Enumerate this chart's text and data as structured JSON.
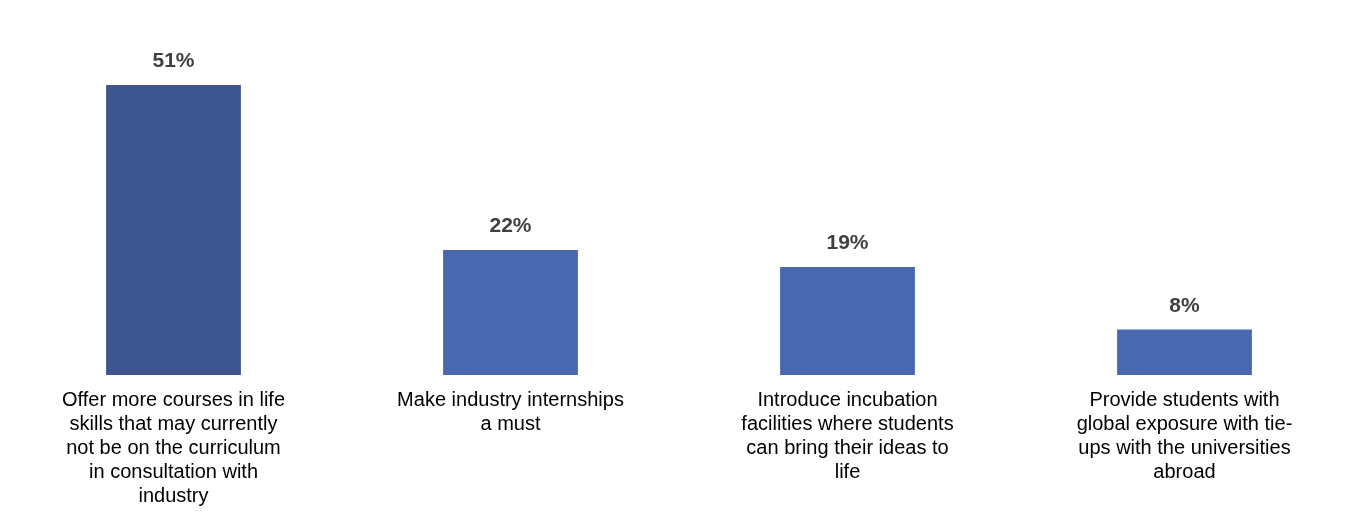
{
  "chart_data": {
    "type": "bar",
    "categories": [
      "Offer more courses in life skills that may currently not be on the curriculum in consultation with industry",
      "Make industry internships a must",
      "Introduce incubation facilities where students can bring their ideas to life",
      "Provide students with global exposure with tie-ups with the universities abroad"
    ],
    "values": [
      51,
      22,
      19,
      8
    ],
    "colors": [
      "#3e5690",
      "#4a68b0",
      "#4a68b0",
      "#4a68b0"
    ],
    "value_labels": [
      "51%",
      "22%",
      "19%",
      "8%"
    ]
  }
}
